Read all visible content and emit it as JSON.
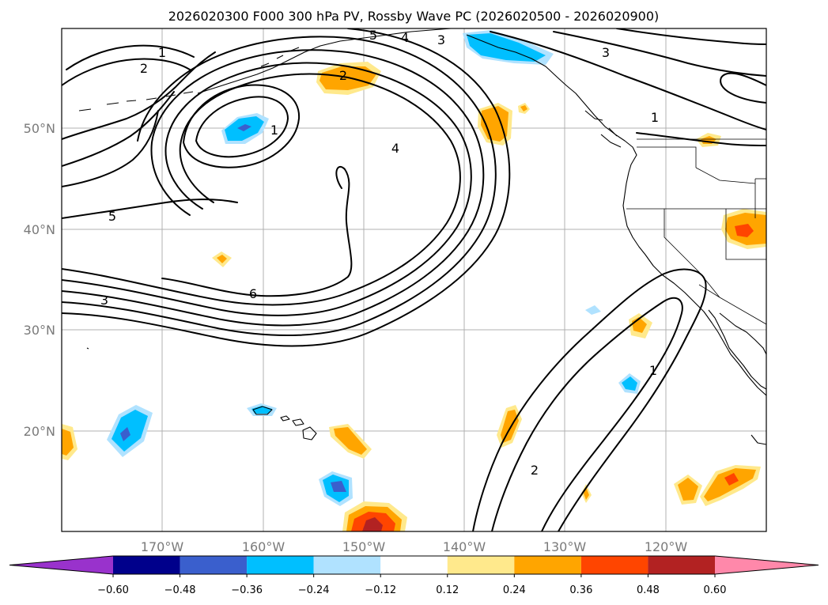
{
  "title": "2026020300 F000 300 hPa PV, Rossby Wave PC (2026020500 - 2026020900)",
  "lat_labels": [
    "50°N",
    "40°N",
    "30°N",
    "20°N"
  ],
  "lon_labels": [
    "170°W",
    "160°W",
    "150°W",
    "140°W",
    "130°W",
    "120°W"
  ],
  "contour_labels": [
    "1",
    "2",
    "3",
    "4",
    "5",
    "6",
    "2",
    "1",
    "5",
    "3",
    "4",
    "3",
    "1",
    "1",
    "2"
  ],
  "colorbar": {
    "ticks": [
      "−0.60",
      "−0.48",
      "−0.36",
      "−0.24",
      "−0.12",
      "0.12",
      "0.24",
      "0.36",
      "0.48",
      "0.60"
    ],
    "colors": [
      "#9932cc",
      "#00008b",
      "#3a5fcd",
      "#00bfff",
      "#b0e2ff",
      "#ffffff",
      "#ffe98c",
      "#ffa500",
      "#ff4500",
      "#b22222",
      "#ff88aa"
    ]
  }
}
